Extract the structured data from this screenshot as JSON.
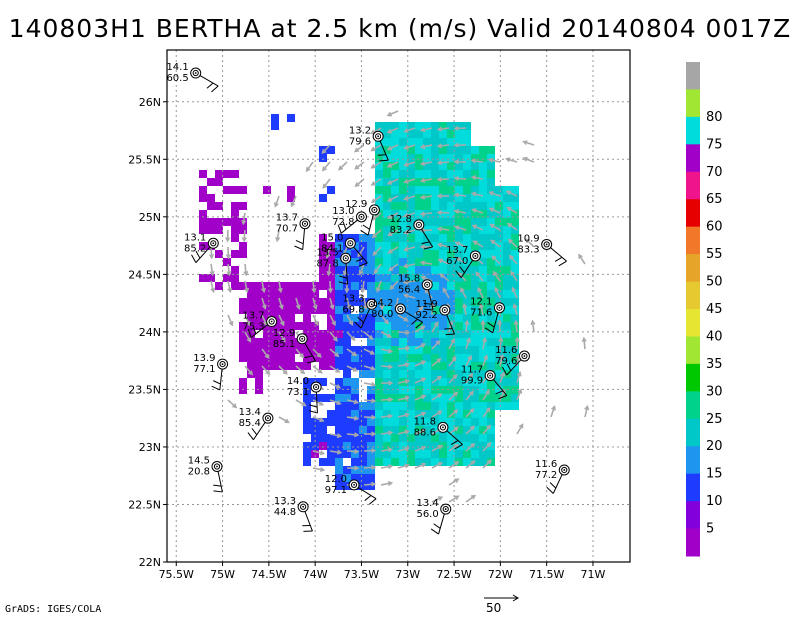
{
  "title": "140803H1 BERTHA at 2.5 km (m/s) Valid 20140804 0017Z",
  "credit": "GrADS: IGES/COLA",
  "reference_vector": {
    "label": "50"
  },
  "map": {
    "lon_range": [
      -75.6,
      -70.6
    ],
    "lat_range": [
      22.0,
      26.45
    ],
    "lon_ticks": [
      {
        "value": -75.5,
        "label": "75.5W"
      },
      {
        "value": -75.0,
        "label": "75W"
      },
      {
        "value": -74.5,
        "label": "74.5W"
      },
      {
        "value": -74.0,
        "label": "74W"
      },
      {
        "value": -73.5,
        "label": "73.5W"
      },
      {
        "value": -73.0,
        "label": "73W"
      },
      {
        "value": -72.5,
        "label": "72.5W"
      },
      {
        "value": -72.0,
        "label": "72W"
      },
      {
        "value": -71.5,
        "label": "71.5W"
      },
      {
        "value": -71.0,
        "label": "71W"
      }
    ],
    "lat_ticks": [
      {
        "value": 22.0,
        "label": "22N"
      },
      {
        "value": 22.5,
        "label": "22.5N"
      },
      {
        "value": 23.0,
        "label": "23N"
      },
      {
        "value": 23.5,
        "label": "23.5N"
      },
      {
        "value": 24.0,
        "label": "24N"
      },
      {
        "value": 24.5,
        "label": "24.5N"
      },
      {
        "value": 25.0,
        "label": "25N"
      },
      {
        "value": 25.5,
        "label": "25.5N"
      },
      {
        "value": 26.0,
        "label": "26N"
      }
    ],
    "grid": true
  },
  "colorbar": {
    "units": "m/s",
    "levels": [
      {
        "label": "",
        "color": "#a6a6a6"
      },
      {
        "label": "80",
        "color": "#a0e632"
      },
      {
        "label": "75",
        "color": "#00dcdc"
      },
      {
        "label": "70",
        "color": "#a000c8"
      },
      {
        "label": "65",
        "color": "#f0148c"
      },
      {
        "label": "60",
        "color": "#e60000"
      },
      {
        "label": "55",
        "color": "#f07828"
      },
      {
        "label": "50",
        "color": "#e6a528"
      },
      {
        "label": "45",
        "color": "#e6c830"
      },
      {
        "label": "40",
        "color": "#e6e632"
      },
      {
        "label": "35",
        "color": "#a0e632"
      },
      {
        "label": "30",
        "color": "#00c800"
      },
      {
        "label": "25",
        "color": "#00d28c"
      },
      {
        "label": "20",
        "color": "#00c8c8"
      },
      {
        "label": "15",
        "color": "#1e96f0"
      },
      {
        "label": "10",
        "color": "#1e3cff"
      },
      {
        "label": "5",
        "color": "#8200dc"
      },
      {
        "label": "",
        "color": "#a000c8"
      }
    ]
  },
  "stations": [
    {
      "lon": -75.29,
      "lat": 26.25,
      "top": "14.1",
      "bottom": "60.5"
    },
    {
      "lon": -73.32,
      "lat": 25.7,
      "top": "13.2",
      "bottom": "79.6"
    },
    {
      "lon": -73.36,
      "lat": 25.06,
      "top": "12.9",
      "bottom": ""
    },
    {
      "lon": -73.5,
      "lat": 25.0,
      "top": "13.0",
      "bottom": "72.8"
    },
    {
      "lon": -72.88,
      "lat": 24.93,
      "top": "12.8",
      "bottom": "83.2"
    },
    {
      "lon": -74.11,
      "lat": 24.94,
      "top": "13.7",
      "bottom": "70.7"
    },
    {
      "lon": -75.1,
      "lat": 24.77,
      "top": "13.1",
      "bottom": "85.2"
    },
    {
      "lon": -73.62,
      "lat": 24.77,
      "top": "15.0",
      "bottom": "84.1"
    },
    {
      "lon": -73.67,
      "lat": 24.64,
      "top": "13.5",
      "bottom": "87.8"
    },
    {
      "lon": -72.27,
      "lat": 24.66,
      "top": "13.7",
      "bottom": "67.0"
    },
    {
      "lon": -71.5,
      "lat": 24.76,
      "top": "10.9",
      "bottom": "83.3"
    },
    {
      "lon": -72.79,
      "lat": 24.41,
      "top": "15.8",
      "bottom": "56.4"
    },
    {
      "lon": -73.39,
      "lat": 24.24,
      "top": "13.3",
      "bottom": "69.8"
    },
    {
      "lon": -73.08,
      "lat": 24.2,
      "top": "14.2",
      "bottom": "80.0"
    },
    {
      "lon": -72.6,
      "lat": 24.19,
      "top": "11.9",
      "bottom": "92.2"
    },
    {
      "lon": -72.01,
      "lat": 24.21,
      "top": "12.1",
      "bottom": "71.6"
    },
    {
      "lon": -74.47,
      "lat": 24.09,
      "top": "13.7",
      "bottom": "75.3"
    },
    {
      "lon": -74.14,
      "lat": 23.94,
      "top": "12.9",
      "bottom": "85.1"
    },
    {
      "lon": -75.0,
      "lat": 23.72,
      "top": "13.9",
      "bottom": "77.1"
    },
    {
      "lon": -71.74,
      "lat": 23.79,
      "top": "11.6",
      "bottom": "79.6"
    },
    {
      "lon": -72.11,
      "lat": 23.62,
      "top": "11.7",
      "bottom": "99.9"
    },
    {
      "lon": -73.99,
      "lat": 23.52,
      "top": "14.0",
      "bottom": "73.1"
    },
    {
      "lon": -74.51,
      "lat": 23.25,
      "top": "13.4",
      "bottom": "85.4"
    },
    {
      "lon": -72.62,
      "lat": 23.17,
      "top": "11.8",
      "bottom": "88.6"
    },
    {
      "lon": -75.06,
      "lat": 22.83,
      "top": "14.5",
      "bottom": "20.8"
    },
    {
      "lon": -71.31,
      "lat": 22.8,
      "top": "11.6",
      "bottom": "77.2"
    },
    {
      "lon": -73.58,
      "lat": 22.67,
      "top": "12.0",
      "bottom": "97.1"
    },
    {
      "lon": -74.13,
      "lat": 22.48,
      "top": "13.3",
      "bottom": "44.8"
    },
    {
      "lon": -72.59,
      "lat": 22.46,
      "top": "13.4",
      "bottom": "56.0"
    }
  ]
}
